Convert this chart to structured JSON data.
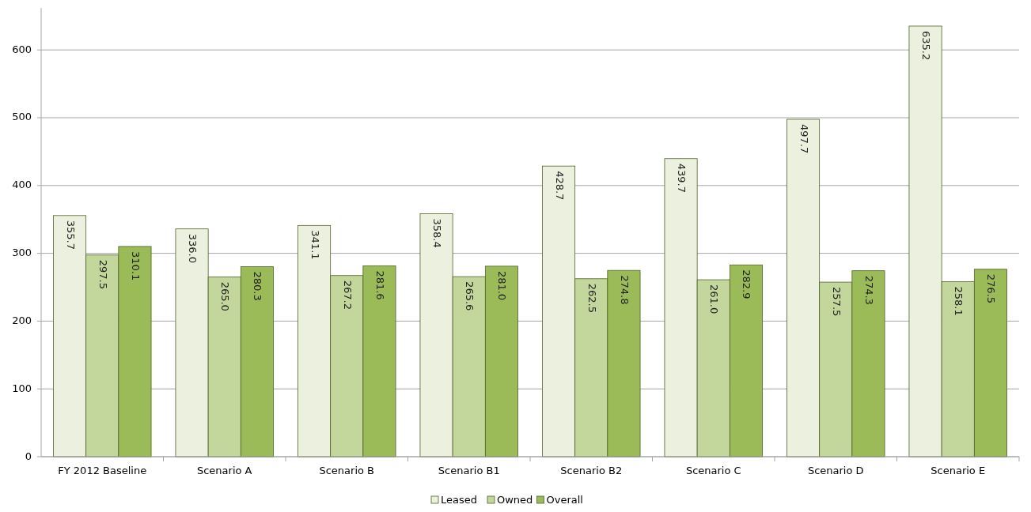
{
  "chart_data": {
    "type": "bar",
    "categories": [
      "FY 2012 Baseline",
      "Scenario A",
      "Scenario B",
      "Scenario B1",
      "Scenario B2",
      "Scenario C",
      "Scenario D",
      "Scenario E"
    ],
    "series": [
      {
        "name": "Leased",
        "color": "#ebf1de",
        "values": [
          355.7,
          336.0,
          341.1,
          358.4,
          428.7,
          439.7,
          497.7,
          635.2
        ],
        "value_labels": [
          "355.7",
          "336.0",
          "341.1",
          "358.4",
          "428.7",
          "439.7",
          "497.7",
          "635.2"
        ]
      },
      {
        "name": "Owned",
        "color": "#c3d69b",
        "values": [
          297.5,
          265.0,
          267.2,
          265.6,
          262.5,
          261.0,
          257.5,
          258.1
        ],
        "value_labels": [
          "297.5",
          "265.0",
          "267.2",
          "265.6",
          "262.5",
          "261.0",
          "257.5",
          "258.1"
        ]
      },
      {
        "name": "Overall",
        "color": "#9bbb59",
        "values": [
          310.1,
          280.3,
          281.6,
          281.0,
          274.8,
          282.9,
          274.3,
          276.5
        ],
        "value_labels": [
          "310.1",
          "280.3",
          "281.6",
          "281.0",
          "274.8",
          "282.9",
          "274.3",
          "276.5"
        ]
      }
    ],
    "ylim": [
      0,
      662
    ],
    "yticks": [
      0,
      100,
      200,
      300,
      400,
      500,
      600
    ],
    "grid": "y",
    "legend": "bottom"
  }
}
